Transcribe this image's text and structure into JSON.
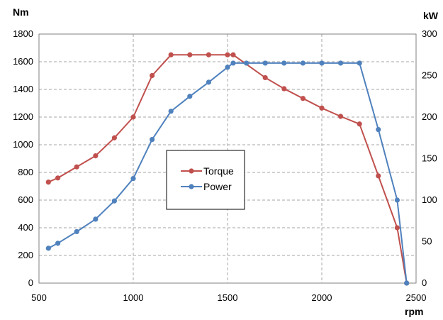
{
  "chart_data": {
    "type": "line",
    "title": "",
    "xlabel": "rpm",
    "ylabel_left": "Nm",
    "ylabel_right": "kW",
    "xlim": [
      500,
      2500
    ],
    "ylim_left": [
      0,
      1800
    ],
    "ylim_right": [
      0,
      300
    ],
    "x_ticks": [
      500,
      1000,
      1500,
      2000,
      2500
    ],
    "y_left_ticks": [
      0,
      200,
      400,
      600,
      800,
      1000,
      1200,
      1400,
      1600,
      1800
    ],
    "y_right_ticks": [
      0,
      50,
      100,
      150,
      200,
      250,
      300
    ],
    "grid": "dashed",
    "legend_position": "center-left",
    "series": [
      {
        "name": "Torque",
        "axis": "left",
        "color": "#c0504d",
        "x": [
          550,
          600,
          700,
          800,
          900,
          1000,
          1100,
          1200,
          1300,
          1400,
          1500,
          1530,
          1700,
          1800,
          1900,
          2000,
          2100,
          2200,
          2300,
          2400,
          2450
        ],
        "y": [
          730,
          760,
          840,
          920,
          1050,
          1200,
          1500,
          1650,
          1650,
          1650,
          1650,
          1650,
          1485,
          1405,
          1335,
          1265,
          1205,
          1150,
          775,
          400,
          0
        ]
      },
      {
        "name": "Power",
        "axis": "right",
        "color": "#4f81bd",
        "x": [
          550,
          600,
          700,
          800,
          900,
          1000,
          1100,
          1200,
          1300,
          1400,
          1500,
          1530,
          1600,
          1700,
          1800,
          1900,
          2000,
          2100,
          2200,
          2300,
          2400,
          2450
        ],
        "y": [
          42,
          48,
          62,
          77,
          99,
          126,
          173,
          207,
          225,
          242,
          260,
          265,
          265,
          265,
          265,
          265,
          265,
          265,
          265,
          185,
          100,
          0
        ]
      }
    ]
  }
}
